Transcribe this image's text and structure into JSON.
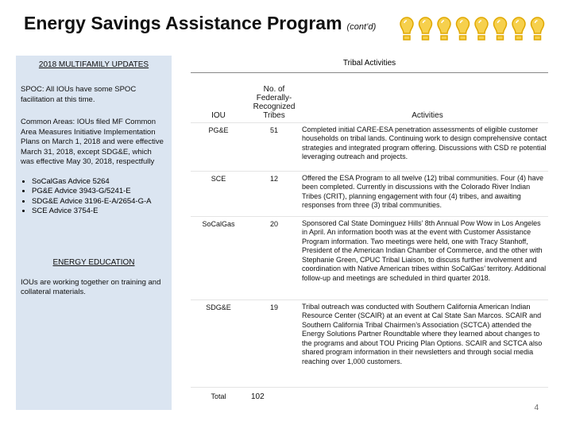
{
  "header": {
    "title": "Energy Savings Assistance Program",
    "subtitle": "(cont’d)"
  },
  "left_panel": {
    "heading": "2018 MULTIFAMILY UPDATES",
    "paragraphs": [
      "SPOC: All IOUs have some SPOC facilitation at this time.",
      "Common Areas: IOUs filed MF Common Area Measures Initiative Implementation Plans on March 1, 2018 and were effective March 31, 2018, except SDG&E, which was effective May 30, 2018, respectfully"
    ],
    "bullets": [
      "SoCalGas Advice 5264",
      "PG&E Advice 3943-G/5241-E",
      "SDG&E Advice 3196-E-A/2654-G-A",
      "SCE Advice 3754-E"
    ],
    "education_heading": "ENERGY EDUCATION",
    "education_text": "IOUs are working together on training and collateral materials."
  },
  "table": {
    "title": "Tribal Activities",
    "columns": [
      "IOU",
      "No. of Federally-Recognized Tribes",
      "Activities"
    ],
    "rows": [
      [
        "PG&E",
        "51",
        "Completed initial CARE-ESA penetration assessments of eligible customer households on tribal lands. Continuing work to design comprehensive contact strategies and integrated program offering. Discussions with CSD re potential leveraging outreach and projects."
      ],
      [
        "SCE",
        "12",
        "Offered the ESA Program to all twelve (12) tribal communities. Four (4) have been completed. Currently in discussions with the Colorado River Indian Tribes (CRIT), planning engagement with four (4) tribes, and awaiting responses from three (3) tribal communities."
      ],
      [
        "SoCalGas",
        "20",
        "Sponsored Cal State Dominguez Hills’ 8th Annual Pow Wow in Los Angeles in April. An information booth was at the event with Customer Assistance Program information. Two meetings were held, one with Tracy Stanhoff, President of the American Indian Chamber of Commerce, and the other with Stephanie Green, CPUC Tribal Liaison, to discuss further involvement and coordination with Native American tribes within SoCalGas’ territory. Additional follow-up and meetings are scheduled in third quarter 2018."
      ],
      [
        "SDG&E",
        "19",
        "Tribal outreach was conducted with Southern California American Indian Resource Center (SCAIR) at an event at Cal State San Marcos. SCAIR and Southern California Tribal Chairmen’s Association (SCTCA) attended the Energy Solutions Partner Roundtable where they learned about changes to the programs and about TOU Pricing Plan Options. SCAIR and SCTCA also shared program information in their newsletters and through social media reaching over 1,000 customers."
      ]
    ],
    "total_label": "Total",
    "total_value": "102"
  },
  "page_number": "4"
}
